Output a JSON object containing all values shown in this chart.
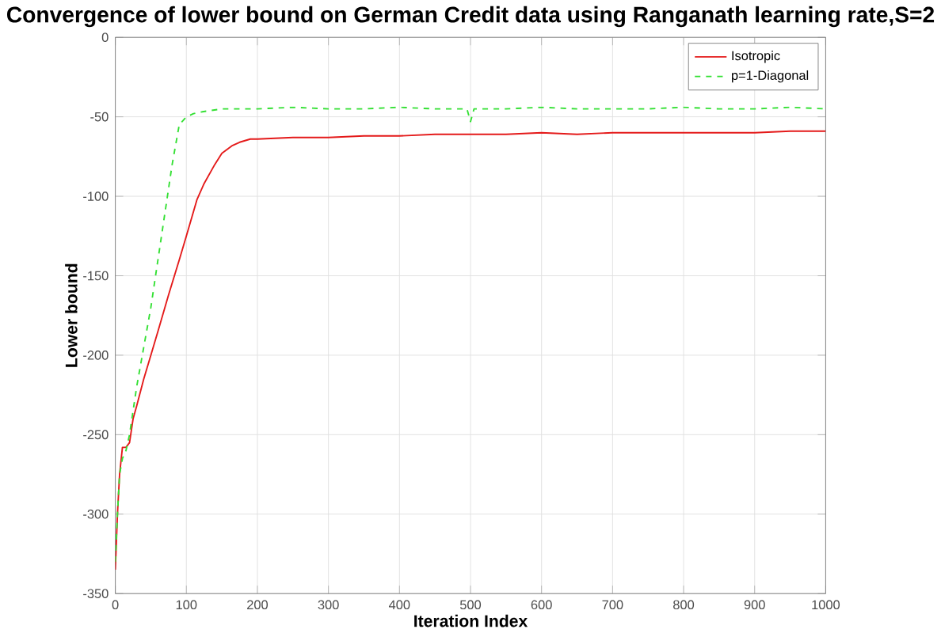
{
  "chart_data": {
    "type": "line",
    "title": "Convergence of lower bound on German Credit data using Ranganath learning rate,S=2",
    "xlabel": "Iteration Index",
    "ylabel": "Lower bound",
    "xlim": [
      0,
      1000
    ],
    "ylim": [
      -350,
      0
    ],
    "xticks": [
      0,
      100,
      200,
      300,
      400,
      500,
      600,
      700,
      800,
      900,
      1000
    ],
    "yticks": [
      -350,
      -300,
      -250,
      -200,
      -150,
      -100,
      -50,
      0
    ],
    "grid": true,
    "legend": "top right",
    "series": [
      {
        "name": "Isotropic",
        "color": "#e41a1a",
        "line_style": "solid",
        "x": [
          0,
          3,
          6,
          10,
          15,
          20,
          25,
          30,
          40,
          50,
          60,
          75,
          90,
          100,
          115,
          125,
          140,
          150,
          165,
          175,
          190,
          200,
          250,
          300,
          350,
          400,
          450,
          500,
          550,
          600,
          650,
          700,
          750,
          800,
          850,
          900,
          950,
          1000
        ],
        "values": [
          -335,
          -300,
          -275,
          -258,
          -258,
          -255,
          -240,
          -232,
          -215,
          -200,
          -185,
          -162,
          -140,
          -125,
          -102,
          -92,
          -80,
          -73,
          -68,
          -66,
          -64,
          -64,
          -63,
          -63,
          -62,
          -62,
          -61,
          -61,
          -61,
          -60,
          -61,
          -60,
          -60,
          -60,
          -60,
          -60,
          -59,
          -59
        ]
      },
      {
        "name": "p=1-Diagonal",
        "color": "#33e033",
        "line_style": "dashed",
        "x": [
          0,
          3,
          6,
          10,
          15,
          20,
          25,
          30,
          40,
          50,
          60,
          70,
          80,
          90,
          100,
          110,
          120,
          150,
          200,
          250,
          300,
          350,
          400,
          450,
          495,
          500,
          505,
          550,
          600,
          650,
          700,
          750,
          800,
          850,
          900,
          950,
          1000
        ],
        "values": [
          -330,
          -300,
          -275,
          -265,
          -260,
          -250,
          -235,
          -220,
          -195,
          -170,
          -140,
          -110,
          -80,
          -55,
          -50,
          -48,
          -47,
          -45,
          -45,
          -44,
          -45,
          -45,
          -44,
          -45,
          -45,
          -53,
          -45,
          -45,
          -44,
          -45,
          -45,
          -45,
          -44,
          -45,
          -45,
          -44,
          -45
        ]
      }
    ]
  }
}
